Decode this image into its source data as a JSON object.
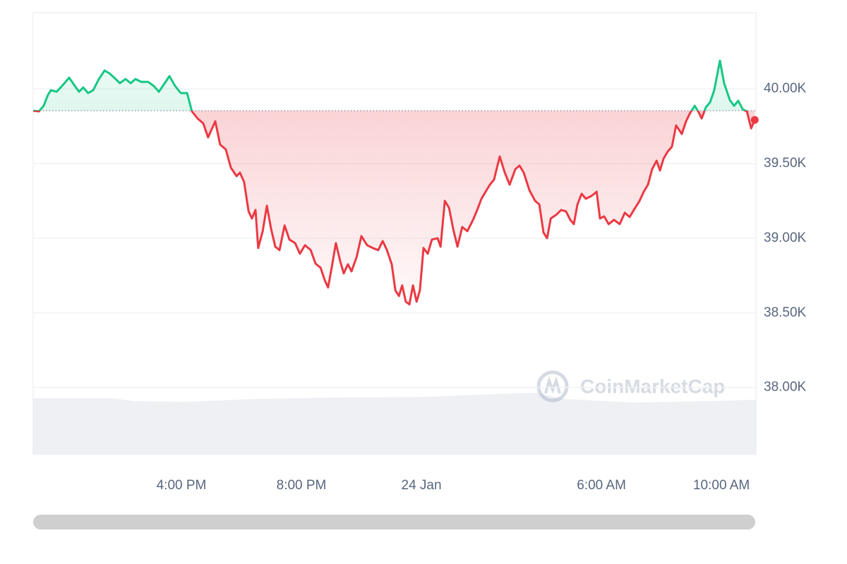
{
  "chart_data": {
    "type": "line",
    "watermark": "CoinMarketCap",
    "x": [
      -12.94,
      -12.75,
      -12.59,
      -12.45,
      -12.35,
      -12.16,
      -11.98,
      -11.74,
      -11.58,
      -11.41,
      -11.27,
      -11.11,
      -10.94,
      -10.75,
      -10.56,
      -10.4,
      -10.24,
      -10.05,
      -9.86,
      -9.69,
      -9.53,
      -9.34,
      -9.11,
      -8.92,
      -8.75,
      -8.59,
      -8.4,
      -8.21,
      -8.02,
      -7.81,
      -7.65,
      -7.46,
      -7.27,
      -7.11,
      -6.87,
      -6.71,
      -6.52,
      -6.35,
      -6.16,
      -6.05,
      -5.91,
      -5.76,
      -5.65,
      -5.53,
      -5.44,
      -5.29,
      -5.15,
      -5.01,
      -4.87,
      -4.73,
      -4.56,
      -4.4,
      -4.21,
      -4.05,
      -3.88,
      -3.69,
      -3.53,
      -3.36,
      -3.22,
      -3.11,
      -2.99,
      -2.85,
      -2.71,
      -2.59,
      -2.45,
      -2.33,
      -2.16,
      -2.0,
      -1.81,
      -1.62,
      -1.44,
      -1.29,
      -1.15,
      -0.99,
      -0.87,
      -0.75,
      -0.64,
      -0.52,
      -0.4,
      -0.28,
      -0.16,
      -0.05,
      0.07,
      0.21,
      0.35,
      0.54,
      0.64,
      0.78,
      0.92,
      1.06,
      1.2,
      1.36,
      1.53,
      1.72,
      1.86,
      2.0,
      2.14,
      2.28,
      2.42,
      2.61,
      2.78,
      2.94,
      3.13,
      3.27,
      3.41,
      3.6,
      3.79,
      3.93,
      4.07,
      4.19,
      4.31,
      4.49,
      4.66,
      4.82,
      4.96,
      5.08,
      5.2,
      5.34,
      5.48,
      5.67,
      5.84,
      5.95,
      6.09,
      6.24,
      6.42,
      6.61,
      6.78,
      6.94,
      7.08,
      7.27,
      7.41,
      7.55,
      7.69,
      7.84,
      7.95,
      8.07,
      8.21,
      8.35,
      8.49,
      8.68,
      8.82,
      8.96,
      9.11,
      9.25,
      9.34,
      9.48,
      9.62,
      9.76,
      9.95,
      10.09,
      10.28,
      10.42,
      10.56,
      10.71,
      10.85,
      10.99,
      11.11
    ],
    "values": [
      39854,
      39849,
      39887,
      39958,
      39991,
      39981,
      40019,
      40075,
      40028,
      39981,
      40009,
      39972,
      39991,
      40066,
      40123,
      40104,
      40075,
      40038,
      40066,
      40038,
      40066,
      40047,
      40047,
      40019,
      39981,
      40028,
      40085,
      40019,
      39972,
      39972,
      39849,
      39802,
      39769,
      39675,
      39783,
      39627,
      39594,
      39472,
      39415,
      39439,
      39377,
      39179,
      39132,
      39189,
      38934,
      39047,
      39217,
      39061,
      38943,
      38920,
      39085,
      38991,
      38967,
      38896,
      38953,
      38920,
      38830,
      38802,
      38717,
      38670,
      38802,
      38967,
      38849,
      38764,
      38825,
      38778,
      38873,
      39014,
      38953,
      38934,
      38920,
      38981,
      38920,
      38825,
      38651,
      38613,
      38684,
      38575,
      38557,
      38684,
      38575,
      38651,
      38934,
      38896,
      38991,
      39000,
      38943,
      39250,
      39203,
      39061,
      38943,
      39075,
      39047,
      39123,
      39189,
      39264,
      39311,
      39358,
      39392,
      39547,
      39439,
      39358,
      39462,
      39486,
      39439,
      39321,
      39250,
      39226,
      39038,
      39000,
      39132,
      39156,
      39189,
      39179,
      39123,
      39094,
      39226,
      39297,
      39264,
      39283,
      39311,
      39132,
      39146,
      39094,
      39123,
      39094,
      39170,
      39142,
      39189,
      39250,
      39311,
      39358,
      39462,
      39519,
      39453,
      39533,
      39580,
      39613,
      39755,
      39698,
      39783,
      39840,
      39887,
      39840,
      39802,
      39877,
      39910,
      39991,
      40189,
      40038,
      39925,
      39887,
      39920,
      39863,
      39849,
      39736,
      39792
    ],
    "reference_value": 39854,
    "up_color": "#16c784",
    "down_color": "#ea3943",
    "xlim": [
      -12.94,
      11.15
    ],
    "xticks": [
      {
        "value": -8,
        "label": "4:00 PM"
      },
      {
        "value": -4,
        "label": "8:00 PM"
      },
      {
        "value": 0,
        "label": "24 Jan"
      },
      {
        "value": 6,
        "label": "6:00 AM"
      },
      {
        "value": 10,
        "label": "10:00 AM"
      }
    ],
    "ylim": [
      37550,
      40510
    ],
    "yticks": [
      {
        "value": 38000,
        "label": "38.00K"
      },
      {
        "value": 38500,
        "label": "38.50K"
      },
      {
        "value": 39000,
        "label": "39.00K"
      },
      {
        "value": 39500,
        "label": "39.50K"
      },
      {
        "value": 40000,
        "label": "40.00K"
      }
    ],
    "grid": true
  }
}
